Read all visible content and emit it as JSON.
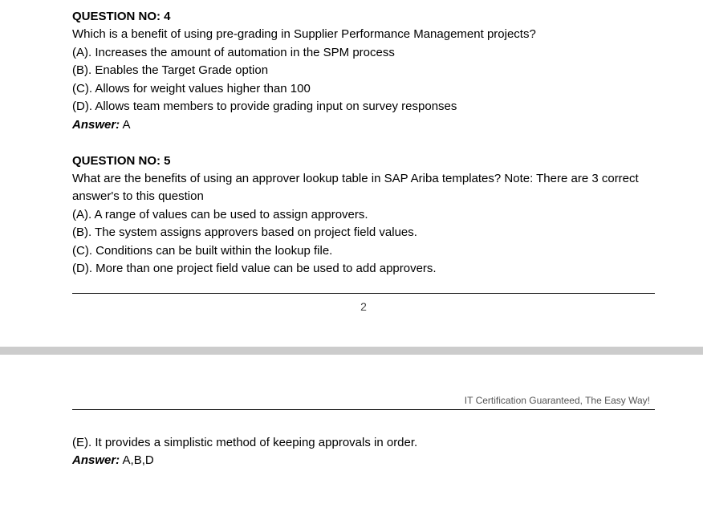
{
  "q4": {
    "title": "QUESTION NO: 4",
    "prompt": "Which is a benefit of using pre-grading in Supplier Performance Management projects?",
    "options": {
      "a": "(A). Increases the amount of automation in the SPM process",
      "b": "(B). Enables the Target Grade option",
      "c": "(C). Allows for weight values higher than 100",
      "d": "(D). Allows team members to provide grading input on survey responses"
    },
    "answerLabel": "Answer:",
    "answerValue": " A"
  },
  "q5": {
    "title": "QUESTION NO: 5",
    "prompt": "What are the benefits of using an approver lookup table in SAP Ariba templates? Note: There are 3 correct answer's to this question",
    "options": {
      "a": "(A). A range of values can be used to assign approvers.",
      "b": "(B). The system assigns approvers based on project field values.",
      "c": "(C). Conditions can be built within the lookup file.",
      "d": "(D). More than one project field value can be used to add approvers.",
      "e": "(E). It provides a simplistic method of keeping approvals in order."
    },
    "answerLabel": "Answer:",
    "answerValue": " A,B,D"
  },
  "pageNumber": "2",
  "tagline": "IT Certification Guaranteed, The Easy Way!"
}
